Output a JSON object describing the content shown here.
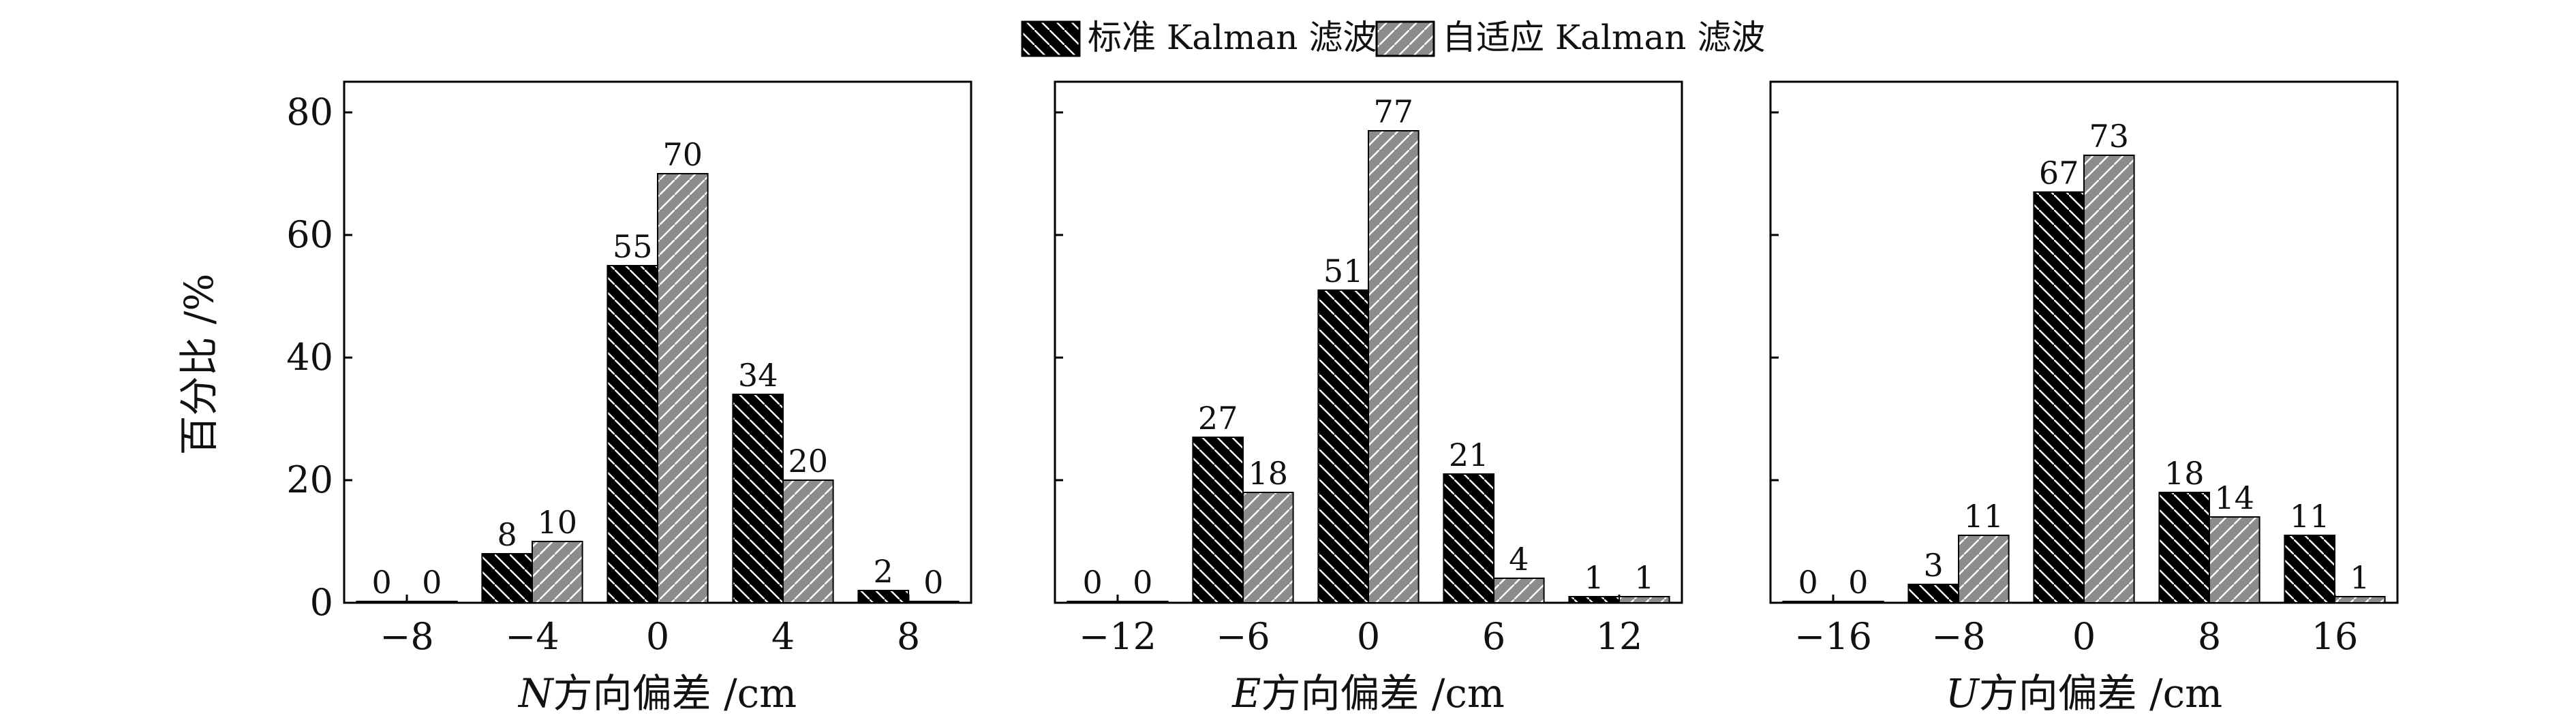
{
  "legend": {
    "items": [
      {
        "label": "标准 Kalman 滤波",
        "fill": "#000000",
        "hatch": "back-slash",
        "hatch_color": "#ffffff"
      },
      {
        "label": "自适应 Kalman 滤波",
        "fill": "#8c8c8c",
        "hatch": "forward-slash",
        "hatch_color": "#ffffff"
      }
    ],
    "placement": "top-center"
  },
  "y_axis_title": "百分比 /%",
  "chart_data": [
    {
      "type": "bar",
      "categories": [
        "−8",
        "−4",
        "0",
        "4",
        "8"
      ],
      "series": [
        {
          "name": "标准 Kalman 滤波",
          "values": [
            0,
            8,
            55,
            34,
            2
          ]
        },
        {
          "name": "自适应 Kalman 滤波",
          "values": [
            0,
            10,
            70,
            20,
            0
          ]
        }
      ],
      "xlabel_var": "N",
      "xlabel": "方向偏差 /cm",
      "ylabel": "百分比 /%",
      "ylim": [
        0,
        85
      ],
      "yticks": [
        0,
        20,
        40,
        60,
        80
      ],
      "show_y_tick_labels": true,
      "grid": false
    },
    {
      "type": "bar",
      "categories": [
        "−12",
        "−6",
        "0",
        "6",
        "12"
      ],
      "series": [
        {
          "name": "标准 Kalman 滤波",
          "values": [
            0,
            27,
            51,
            21,
            1
          ]
        },
        {
          "name": "自适应 Kalman 滤波",
          "values": [
            0,
            18,
            77,
            4,
            1
          ]
        }
      ],
      "xlabel_var": "E",
      "xlabel": "方向偏差 /cm",
      "ylim": [
        0,
        85
      ],
      "yticks": [
        0,
        20,
        40,
        60,
        80
      ],
      "show_y_tick_labels": false,
      "grid": false
    },
    {
      "type": "bar",
      "categories": [
        "−16",
        "−8",
        "0",
        "8",
        "16"
      ],
      "series": [
        {
          "name": "标准 Kalman 滤波",
          "values": [
            0,
            3,
            67,
            18,
            11
          ]
        },
        {
          "name": "自适应 Kalman 滤波",
          "values": [
            0,
            11,
            73,
            14,
            1
          ]
        }
      ],
      "xlabel_var": "U",
      "xlabel": "方向偏差 /cm",
      "ylim": [
        0,
        85
      ],
      "yticks": [
        0,
        20,
        40,
        60,
        80
      ],
      "show_y_tick_labels": false,
      "grid": false
    }
  ]
}
